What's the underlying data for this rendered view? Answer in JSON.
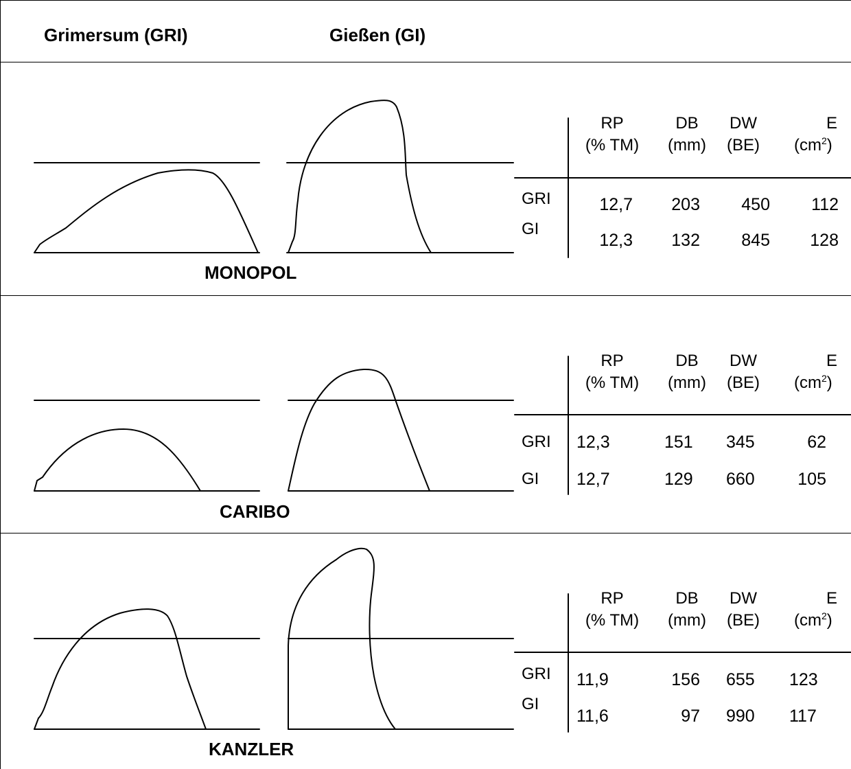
{
  "headers": {
    "left": "Grimersum (GRI)",
    "right": "Gießen (GI)"
  },
  "table_header": {
    "rp": "RP",
    "rp_unit": "(% TM)",
    "db": "DB",
    "db_unit": "(mm)",
    "dw": "DW",
    "dw_unit": "(BE)",
    "e": "E",
    "e_unit_prefix": "(cm",
    "e_unit_sup": "2",
    "e_unit_suffix": ")"
  },
  "rows": {
    "gri": "GRI",
    "gi": "GI"
  },
  "sections": [
    {
      "variety": "MONOPOL",
      "gri": {
        "rp": "12,7",
        "db": "203",
        "dw": "450",
        "e": "112"
      },
      "gi": {
        "rp": "12,3",
        "db": "132",
        "dw": "845",
        "e": "128"
      }
    },
    {
      "variety": "CARIBO",
      "gri": {
        "rp": "12,3",
        "db": "151",
        "dw": "345",
        "e": "62"
      },
      "gi": {
        "rp": "12,7",
        "db": "129",
        "dw": "660",
        "e": "105"
      }
    },
    {
      "variety": "KANZLER",
      "gri": {
        "rp": "11,9",
        "db": "156",
        "dw": "655",
        "e": "123"
      },
      "gi": {
        "rp": "11,6",
        "db": "97",
        "dw": "990",
        "e": "117"
      }
    }
  ]
}
